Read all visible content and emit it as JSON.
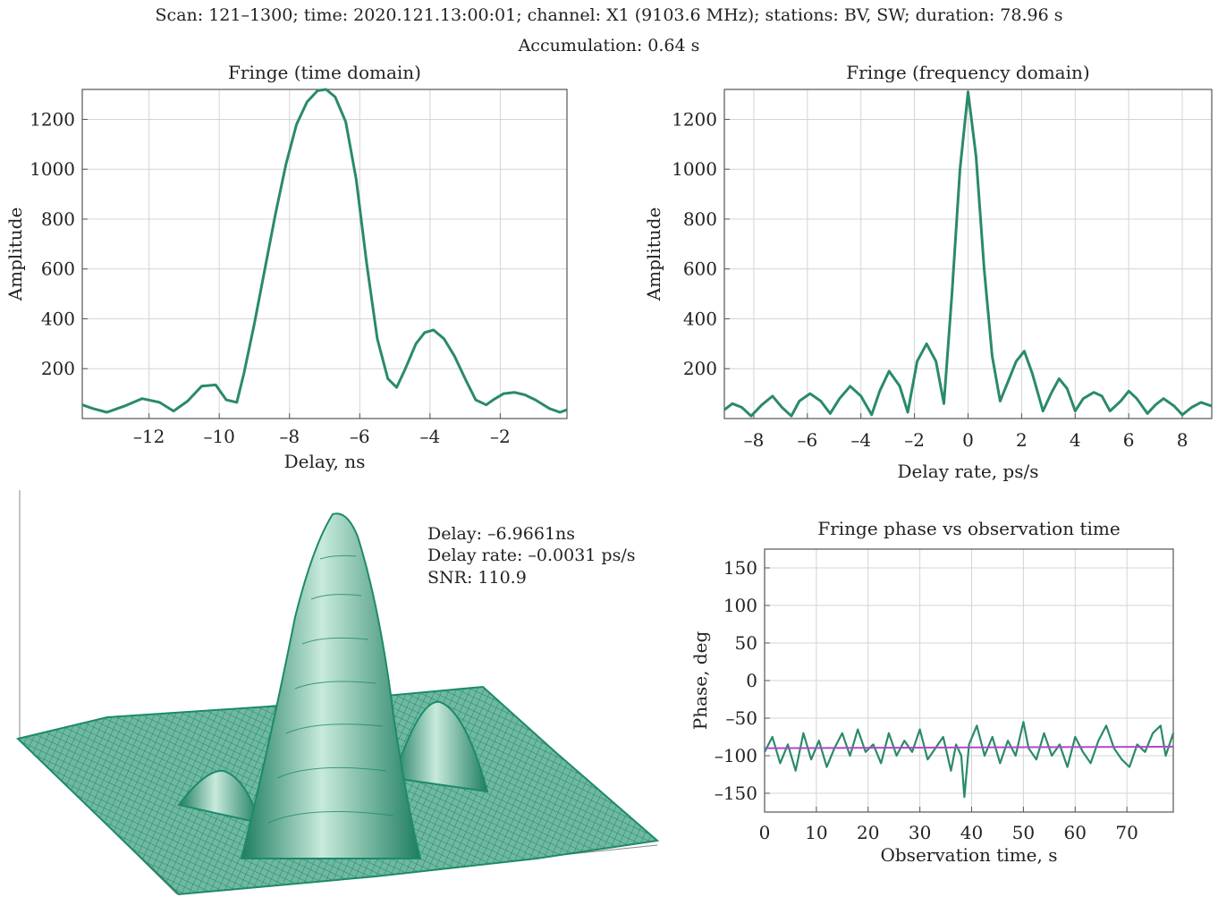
{
  "header": {
    "line1": "Scan: 121–1300; time: 2020.121.13:00:01; channel: X1 (9103.6 MHz); stations: BV, SW; duration: 78.96 s",
    "line2": "Accumulation: 0.64 s"
  },
  "annotation": {
    "delay": "Delay: –6.9661ns",
    "delay_rate": "Delay rate: –0.0031 ps/s",
    "snr": "SNR: 110.9"
  },
  "colors": {
    "curve": "#2a8a6a",
    "fit": "#b048c8",
    "grid": "#d4d4d4",
    "surface": "#1d8a6a"
  },
  "chart_data": [
    {
      "id": "time",
      "type": "line",
      "title": "Fringe (time domain)",
      "xlabel": "Delay, ns",
      "ylabel": "Amplitude",
      "xlim": [
        -13.9,
        -0.1
      ],
      "ylim": [
        0,
        1320
      ],
      "xticks": [
        -12,
        -10,
        -8,
        -6,
        -4,
        -2
      ],
      "xtick_labels": [
        "–12",
        "–10",
        "–8",
        "–6",
        "–4",
        "–2"
      ],
      "yticks": [
        200,
        400,
        600,
        800,
        1000,
        1200
      ],
      "ytick_labels": [
        "200",
        "400",
        "600",
        "800",
        "1000",
        "1200"
      ],
      "grid": true,
      "series": [
        {
          "x": [
            -13.9,
            -13.6,
            -13.2,
            -12.7,
            -12.2,
            -11.7,
            -11.3,
            -10.9,
            -10.5,
            -10.1,
            -9.8,
            -9.5,
            -9.3,
            -9.0,
            -8.7,
            -8.4,
            -8.1,
            -7.8,
            -7.5,
            -7.2,
            -6.96,
            -6.7,
            -6.4,
            -6.1,
            -5.8,
            -5.5,
            -5.2,
            -4.95,
            -4.7,
            -4.4,
            -4.15,
            -3.9,
            -3.6,
            -3.3,
            -3.0,
            -2.7,
            -2.4,
            -2.2,
            -1.9,
            -1.6,
            -1.3,
            -1.0,
            -0.6,
            -0.3,
            -0.1
          ],
          "y": [
            55,
            40,
            25,
            50,
            80,
            65,
            30,
            70,
            130,
            135,
            75,
            65,
            180,
            380,
            600,
            820,
            1020,
            1180,
            1270,
            1315,
            1320,
            1290,
            1190,
            960,
            620,
            320,
            160,
            125,
            200,
            300,
            345,
            355,
            320,
            250,
            160,
            75,
            55,
            75,
            100,
            105,
            95,
            75,
            40,
            25,
            35
          ]
        }
      ]
    },
    {
      "id": "freq",
      "type": "line",
      "title": "Fringe (frequency domain)",
      "xlabel": "Delay rate, ps/s",
      "ylabel": "Amplitude",
      "xlim": [
        -9.1,
        9.1
      ],
      "ylim": [
        0,
        1320
      ],
      "xticks": [
        -8,
        -6,
        -4,
        -2,
        0,
        2,
        4,
        6,
        8
      ],
      "xtick_labels": [
        "–8",
        "–6",
        "–4",
        "–2",
        "0",
        "2",
        "4",
        "6",
        "8"
      ],
      "yticks": [
        200,
        400,
        600,
        800,
        1000,
        1200
      ],
      "ytick_labels": [
        "200",
        "400",
        "600",
        "800",
        "1000",
        "1200"
      ],
      "grid": true,
      "series": [
        {
          "x": [
            -9.1,
            -8.8,
            -8.45,
            -8.1,
            -7.7,
            -7.3,
            -6.95,
            -6.6,
            -6.3,
            -5.9,
            -5.5,
            -5.15,
            -4.8,
            -4.4,
            -4.0,
            -3.6,
            -3.3,
            -2.95,
            -2.55,
            -2.25,
            -1.9,
            -1.55,
            -1.2,
            -0.9,
            -0.6,
            -0.3,
            0,
            0.3,
            0.6,
            0.9,
            1.2,
            1.5,
            1.8,
            2.1,
            2.4,
            2.8,
            3.1,
            3.4,
            3.7,
            4.0,
            4.3,
            4.7,
            5.0,
            5.3,
            5.7,
            6.0,
            6.3,
            6.7,
            7.0,
            7.3,
            7.7,
            8.0,
            8.35,
            8.7,
            9.1
          ],
          "y": [
            35,
            60,
            45,
            10,
            55,
            90,
            45,
            10,
            70,
            100,
            70,
            20,
            80,
            130,
            90,
            15,
            110,
            190,
            130,
            25,
            230,
            300,
            230,
            60,
            500,
            1000,
            1310,
            1050,
            600,
            250,
            70,
            150,
            230,
            270,
            180,
            30,
            100,
            160,
            120,
            30,
            80,
            105,
            90,
            30,
            70,
            110,
            80,
            20,
            55,
            80,
            50,
            15,
            45,
            65,
            50
          ]
        }
      ]
    },
    {
      "id": "phase",
      "type": "line",
      "title": "Fringe phase vs observation time",
      "xlabel": "Observation time, s",
      "ylabel": "Phase, deg",
      "xlim": [
        0,
        78.96
      ],
      "ylim": [
        -175,
        175
      ],
      "xticks": [
        0,
        10,
        20,
        30,
        40,
        50,
        60,
        70
      ],
      "xtick_labels": [
        "0",
        "10",
        "20",
        "30",
        "40",
        "50",
        "60",
        "70"
      ],
      "yticks": [
        150,
        100,
        50,
        0,
        -50,
        -100,
        -150
      ],
      "ytick_labels": [
        "150",
        "100",
        "50",
        "0",
        "–50",
        "–100",
        "–150"
      ],
      "grid": true,
      "fit_line": {
        "x": [
          0,
          78.96
        ],
        "y": [
          -90,
          -88
        ]
      },
      "series": [
        {
          "x": [
            0,
            1.5,
            3,
            4.5,
            6,
            7.5,
            9,
            10.5,
            12,
            13.5,
            15,
            16.5,
            18,
            19.5,
            21,
            22.5,
            24,
            25.5,
            27,
            28.5,
            30,
            31.5,
            33,
            34.5,
            36,
            37,
            38,
            38.6,
            39.5,
            41,
            42.5,
            44,
            45.5,
            47,
            48.5,
            50,
            51,
            52.5,
            54,
            55.5,
            57,
            58.5,
            60,
            61.5,
            63,
            64.5,
            66,
            67.5,
            69,
            70.5,
            72,
            73.5,
            75,
            76.5,
            77.5,
            78.96
          ],
          "y": [
            -95,
            -75,
            -110,
            -85,
            -120,
            -70,
            -105,
            -80,
            -115,
            -90,
            -70,
            -100,
            -65,
            -95,
            -85,
            -110,
            -70,
            -100,
            -80,
            -95,
            -65,
            -105,
            -90,
            -75,
            -120,
            -85,
            -100,
            -155,
            -85,
            -60,
            -100,
            -75,
            -110,
            -80,
            -100,
            -55,
            -90,
            -105,
            -70,
            -100,
            -85,
            -115,
            -75,
            -95,
            -110,
            -80,
            -60,
            -90,
            -105,
            -115,
            -85,
            -95,
            -70,
            -60,
            -100,
            -70
          ]
        }
      ]
    }
  ]
}
